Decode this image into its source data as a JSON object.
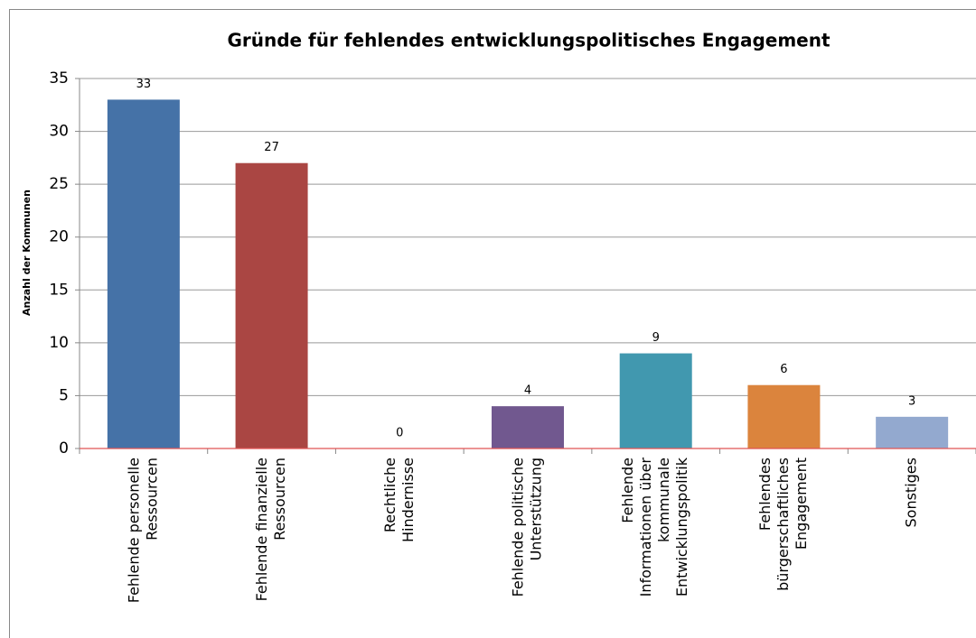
{
  "chart_data": {
    "type": "bar",
    "title": "Gründe für fehlendes entwicklungspolitisches Engagement",
    "ylabel": "Anzahl der Kommunen",
    "categories": [
      [
        "Fehlende personelle",
        "Ressourcen"
      ],
      [
        "Fehlende finanzielle",
        "Ressourcen"
      ],
      [
        "Rechtliche",
        "Hindernisse"
      ],
      [
        "Fehlende politische",
        "Unterstützung"
      ],
      [
        "Fehlende",
        "Informationen über",
        "kommunale",
        "Entwicklungspolitik"
      ],
      [
        "Fehlendes",
        "bürgerschaftliches",
        "Engagement"
      ],
      [
        "Sonstiges"
      ]
    ],
    "values": [
      33,
      27,
      0,
      4,
      9,
      6,
      3
    ],
    "colors": [
      "#4572a7",
      "#aa4643",
      "#89a54e",
      "#71588f",
      "#4198af",
      "#db843d",
      "#93a9cf"
    ],
    "ylim": [
      0,
      35
    ],
    "yticks": [
      0,
      5,
      10,
      15,
      20,
      25,
      30,
      35
    ],
    "grid": true
  }
}
